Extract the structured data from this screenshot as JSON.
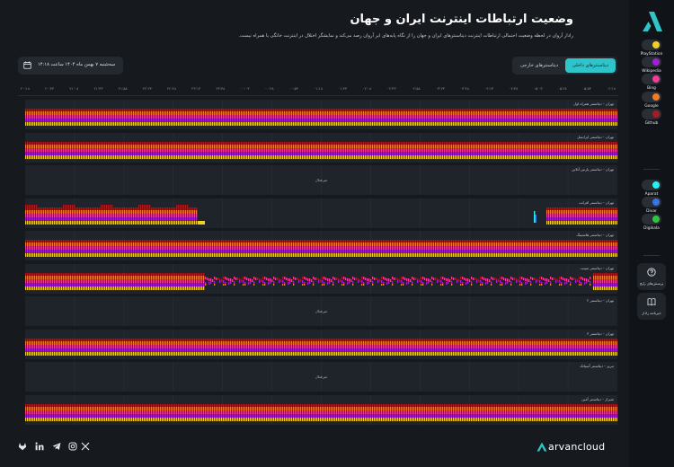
{
  "page": {
    "title": "وضعیت ارتباطات اینترنت ایران و جهان",
    "subtitle": "رادار آروان در لحظه وضعیت احتمالی ارتباطات اینترنت دیتاسنترهای ایران و جهان را از نگاه پایه‌های ابر آروان رصد می‌کند و نمایشگر اختلال در اینترنت خانگی یا همراه نیست."
  },
  "date_selector": {
    "label": "سه‌شنبه ۷ بهمن ماه ۱۴۰۴ ساعت ۱۴:۱۸",
    "icon": "calendar-icon"
  },
  "toggle": {
    "internal": "دیتاسنترهای داخلی",
    "external": "دیتاسنترهای خارجی",
    "active": "internal"
  },
  "time_ticks": [
    "۲۰:۱۸",
    "۲۰:۴۳",
    "۲۱:۰۸",
    "۲۱:۳۳",
    "۲۱:۵۸",
    "۲۲:۲۳",
    "۲۲:۴۸",
    "۲۳:۱۳",
    "۲۳:۳۸",
    "۰۰:۰۳",
    "۰۰:۲۸",
    "۰۰:۵۳",
    "۰۱:۱۸",
    "۰۱:۴۳",
    "۰۲:۰۸",
    "۰۲:۳۳",
    "۰۲:۵۸",
    "۰۳:۲۳",
    "۰۳:۴۸",
    "۰۴:۱۳",
    "۰۴:۳۸",
    "۰۵:۰۳",
    "۰۵:۲۸",
    "۰۵:۵۳",
    "۰۶:۱۸"
  ],
  "colors": {
    "PlayStation": "#f2cf22",
    "Wikipedia": "#a21fd6",
    "Bing": "#ef3f96",
    "Google": "#f07c27",
    "Github": "#a51d22",
    "Aparat": "#26f0f0",
    "Divar": "#3a72e8",
    "Digikala": "#2fc53d"
  },
  "services_global": [
    {
      "name": "PlayStation",
      "icon": "playstation-icon"
    },
    {
      "name": "Wikipedia",
      "icon": "wikipedia-icon"
    },
    {
      "name": "Bing",
      "icon": "bing-icon"
    },
    {
      "name": "Google",
      "icon": "google-icon"
    },
    {
      "name": "Github",
      "icon": "github-icon"
    }
  ],
  "services_iran": [
    {
      "name": "Aparat",
      "icon": "aparat-icon"
    },
    {
      "name": "Divar",
      "icon": "divar-icon"
    },
    {
      "name": "Digikala",
      "icon": "digikala-icon"
    }
  ],
  "sidebar_buttons": [
    {
      "label": "پرسش‌های رایج",
      "icon": "help-icon"
    },
    {
      "label": "خبرنامه رادار",
      "icon": "book-icon"
    }
  ],
  "datacenters": [
    {
      "label": "تهران - دیتاسنتر همراه اول",
      "pattern": "full"
    },
    {
      "label": "تهران - دیتاسنتر ایرانسل",
      "pattern": "full"
    },
    {
      "label": "تهران - دیتاسنتر پارس آنلاین",
      "pattern": "none",
      "status": "غیرفعال"
    },
    {
      "label": "تهران - دیتاسنتر افرانت",
      "pattern": "afranet"
    },
    {
      "label": "تهران - دیتاسنتر هاستینگ",
      "pattern": "full"
    },
    {
      "label": "تهران - دیتاسنتر مبینت",
      "pattern": "mobinnet"
    },
    {
      "label": "تهران - دیتاسنتر ۲",
      "pattern": "none",
      "status": "غیرفعال"
    },
    {
      "label": "تهران - دیتاسنتر ۳",
      "pattern": "full"
    },
    {
      "label": "تبریز - دیتاسنتر آسیاتک",
      "pattern": "none",
      "status": "غیرفعال"
    },
    {
      "label": "شیراز - دیتاسنتر آمین",
      "pattern": "full"
    }
  ],
  "brand": {
    "name": "arvancloud"
  },
  "social": [
    {
      "name": "x-icon"
    },
    {
      "name": "instagram-icon"
    },
    {
      "name": "telegram-icon"
    },
    {
      "name": "linkedin-icon"
    },
    {
      "name": "gitlab-icon"
    }
  ]
}
